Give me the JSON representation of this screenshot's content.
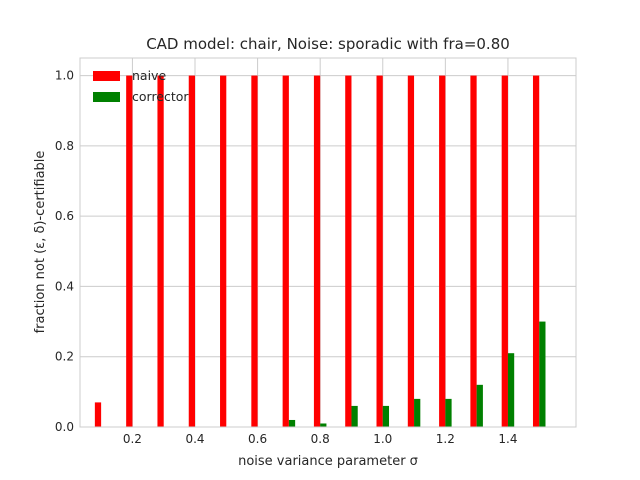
{
  "chart_data": {
    "type": "bar",
    "title": "CAD model: chair, Noise: sporadic with fra=0.80",
    "xlabel": "noise variance parameter σ",
    "ylabel": "fraction not (ε, δ)-certifiable",
    "x": [
      0.1,
      0.2,
      0.3,
      0.4,
      0.5,
      0.6,
      0.7,
      0.8,
      0.9,
      1.0,
      1.1,
      1.2,
      1.3,
      1.4,
      1.5
    ],
    "series": [
      {
        "name": "naive",
        "color": "#ff0000",
        "values": [
          0.07,
          1.0,
          1.0,
          1.0,
          1.0,
          1.0,
          1.0,
          1.0,
          1.0,
          1.0,
          1.0,
          1.0,
          1.0,
          1.0,
          1.0
        ]
      },
      {
        "name": "corrector",
        "color": "#008000",
        "values": [
          0.0,
          0.0,
          0.0,
          0.0,
          0.0,
          0.0,
          0.02,
          0.01,
          0.06,
          0.06,
          0.08,
          0.08,
          0.12,
          0.21,
          0.3
        ]
      }
    ],
    "xticks": [
      0.2,
      0.4,
      0.6,
      0.8,
      1.0,
      1.2,
      1.4
    ],
    "xtick_labels": [
      "0.2",
      "0.4",
      "0.6",
      "0.8",
      "1.0",
      "1.2",
      "1.4"
    ],
    "yticks": [
      0.0,
      0.2,
      0.4,
      0.6,
      0.8,
      1.0
    ],
    "ytick_labels": [
      "0.0",
      "0.2",
      "0.4",
      "0.6",
      "0.8",
      "1.0"
    ],
    "xlim": [
      0.0325,
      1.6175
    ],
    "ylim": [
      0.0,
      1.05
    ],
    "grid": true,
    "legend_position": "top-left"
  }
}
